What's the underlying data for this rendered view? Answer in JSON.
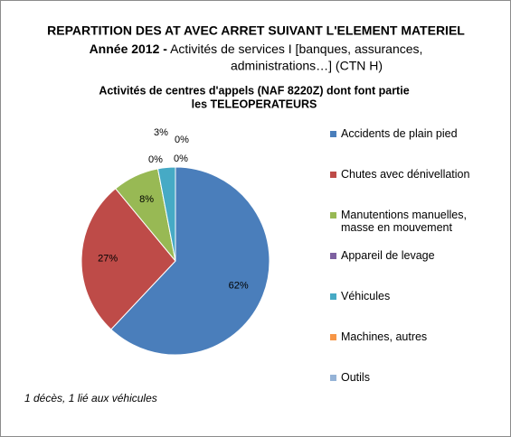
{
  "chart_data": {
    "type": "pie",
    "title": "REPARTITION DES AT AVEC ARRET SUIVANT L'ELEMENT MATERIEL",
    "subtitle_lead": "Année 2012  -",
    "subtitle": [
      "Activités de services I [banques, assurances,",
      "administrations…] (CTN H)"
    ],
    "chart_title": [
      "Activités de centres d'appels (NAF 8220Z) dont font partie",
      "les TELEOPERATEURS"
    ],
    "annotation": "1 décès, 1 lié aux véhicules",
    "series": [
      {
        "name": "Accidents de plain pied",
        "color": "#4a7ebb",
        "values": [
          62
        ],
        "value_labels": [
          "62%"
        ]
      },
      {
        "name": "Chutes avec dénivellation",
        "color": "#be4b48",
        "values": [
          27
        ],
        "value_labels": [
          "27%"
        ]
      },
      {
        "name": "Manutentions manuelles, masse en mouvement",
        "color": "#98b954",
        "values": [
          8
        ],
        "value_labels": [
          "8%"
        ]
      },
      {
        "name": "Appareil de levage",
        "color": "#7d60a0",
        "values": [
          0
        ],
        "value_labels": [
          "0%"
        ]
      },
      {
        "name": "Véhicules",
        "color": "#46aac5",
        "values": [
          3
        ],
        "value_labels": [
          "3%"
        ]
      },
      {
        "name": "Machines, autres",
        "color": "#f79646",
        "values": [
          0
        ],
        "value_labels": [
          "0%"
        ]
      },
      {
        "name": "Outils",
        "color": "#95b3d7",
        "values": [
          0
        ],
        "value_labels": [
          "0%"
        ]
      }
    ]
  }
}
